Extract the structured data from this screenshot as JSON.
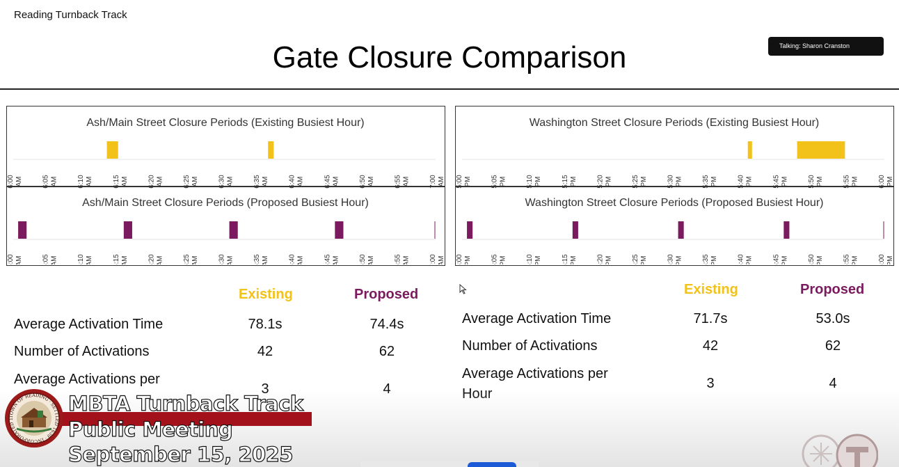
{
  "window": {
    "title": "Reading Turnback Track",
    "talking": "Talking: Sharon Cranston"
  },
  "slide": {
    "title": "Gate Closure Comparison"
  },
  "colors": {
    "existing": "#f2c21a",
    "proposed": "#7b1a5e",
    "banner": "#a3121a"
  },
  "panels": [
    {
      "name": "ash-main",
      "ticks": [
        "6:00|AM",
        "6:05|AM",
        "6:10|AM",
        "6:15|AM",
        "6:20|AM",
        "6:25|AM",
        "6:30|AM",
        "6:35|AM",
        "6:40|AM",
        "6:45|AM",
        "6:50|AM",
        "6:55|AM",
        "7:00|AM"
      ],
      "existing": {
        "title": "Ash/Main Street Closure Periods (Existing Busiest Hour)",
        "periods": [
          [
            13.3,
            14.9
          ],
          [
            36.2,
            37.0
          ]
        ]
      },
      "proposed": {
        "title": "Ash/Main Street Closure Periods (Proposed Busiest Hour)",
        "periods": [
          [
            0.7,
            1.9
          ],
          [
            15.7,
            16.9
          ],
          [
            30.7,
            31.9
          ],
          [
            45.7,
            46.9
          ]
        ]
      }
    },
    {
      "name": "washington",
      "ticks": [
        "5:00|PM",
        "5:05|PM",
        "5:10|PM",
        "5:15|PM",
        "5:20|PM",
        "5:25|PM",
        "5:30|PM",
        "5:35|PM",
        "5:40|PM",
        "5:45|PM",
        "5:50|PM",
        "5:55|PM",
        "6:00|PM"
      ],
      "existing": {
        "title": "Washington Street Closure Periods (Existing Busiest Hour)",
        "periods": [
          [
            40.6,
            41.2
          ],
          [
            47.6,
            54.4
          ]
        ]
      },
      "proposed": {
        "title": "Washington Street Closure Periods (Proposed Busiest Hour)",
        "periods": [
          [
            0.7,
            1.5
          ],
          [
            15.7,
            16.5
          ],
          [
            30.7,
            31.5
          ],
          [
            45.7,
            46.5
          ]
        ]
      }
    }
  ],
  "stats": [
    {
      "headers": {
        "existing": "Existing",
        "proposed": "Proposed"
      },
      "rows": [
        {
          "label": "Average Activation Time",
          "existing": "78.1s",
          "proposed": "74.4s"
        },
        {
          "label": "Number of Activations",
          "existing": "42",
          "proposed": "62"
        },
        {
          "label": "Average Activations per",
          "existing": "3",
          "proposed": "4"
        }
      ]
    },
    {
      "headers": {
        "existing": "Existing",
        "proposed": "Proposed"
      },
      "rows": [
        {
          "label": "Average Activation Time",
          "existing": "71.7s",
          "proposed": "53.0s"
        },
        {
          "label": "Number of Activations",
          "existing": "42",
          "proposed": "62"
        },
        {
          "label": "Average Activations per Hour",
          "existing": "3",
          "proposed": "4"
        }
      ]
    }
  ],
  "banner": {
    "line1": "MBTA Turnback Track",
    "line2": "Public Meeting",
    "line3": "September 15, 2025",
    "seal_text": "TOWN OF READING · SETTLED 1639 · INCORPORATED 1644"
  }
}
